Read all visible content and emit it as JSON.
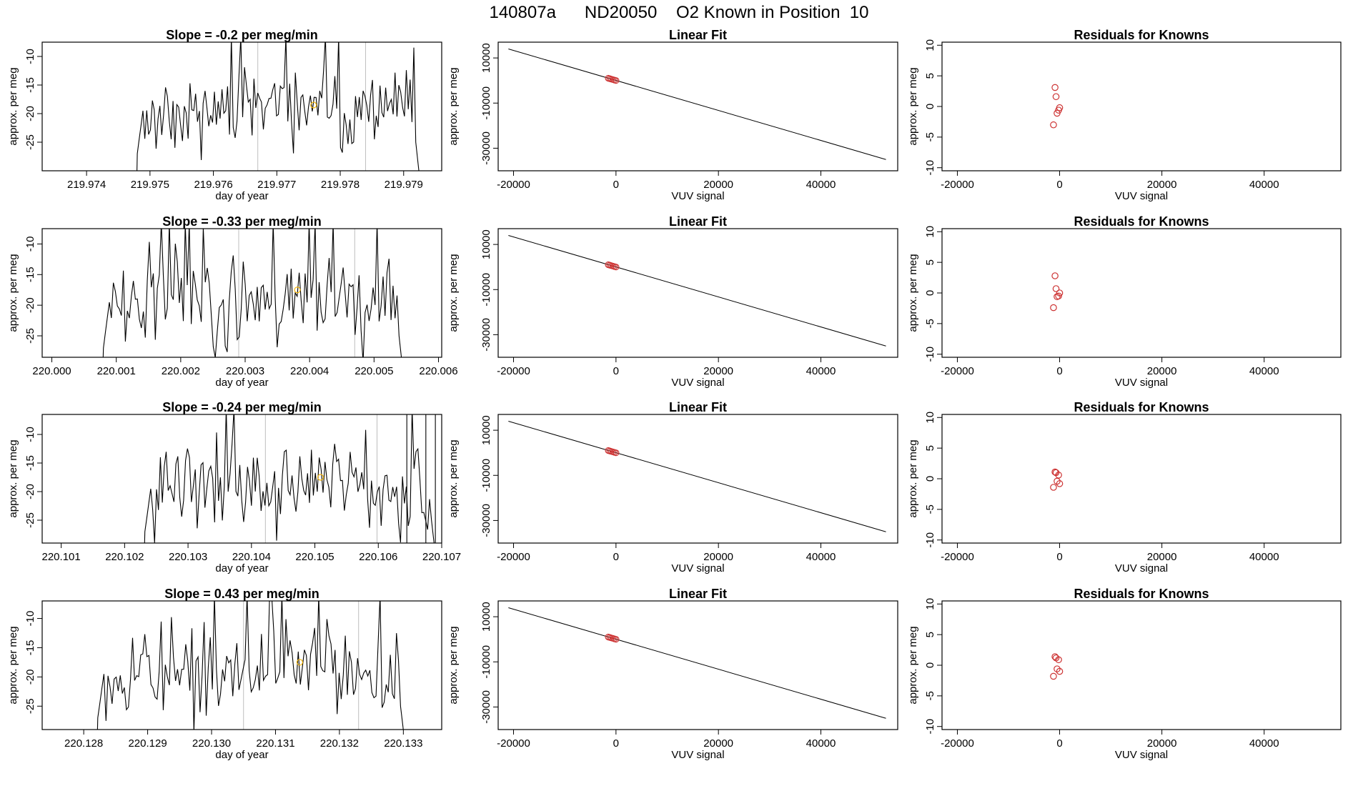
{
  "title": "140807a      ND20050    O2 Known in Position  10",
  "colors": {
    "line": "#000000",
    "gridline": "#bebebe",
    "known_points": "#cd3333",
    "marker": "#f6b60a"
  },
  "chart_data": [
    {
      "type": "line",
      "panel": "time-series",
      "row": 1,
      "title": "Slope =  -0.2  per meg/min",
      "xlabel": "day of year",
      "ylabel": "approx. per meg",
      "xlim": [
        219.9733,
        219.9796
      ],
      "ylim": [
        -30,
        -7.5
      ],
      "xticks": [
        "219.974",
        "219.975",
        "219.976",
        "219.977",
        "219.978",
        "219.979"
      ],
      "xtick_values": [
        219.974,
        219.975,
        219.976,
        219.977,
        219.978,
        219.979
      ],
      "yticks": [
        "-10",
        "-15",
        "-20",
        "-25"
      ],
      "ytick_values": [
        -10,
        -15,
        -20,
        -25
      ],
      "x_start": 219.9748,
      "x_end": 219.97925,
      "vlines": [
        219.9767,
        219.9784
      ],
      "marker": {
        "x": 219.97758,
        "y": -18.5
      },
      "seed": 11
    },
    {
      "type": "line",
      "panel": "time-series",
      "row": 2,
      "title": "Slope =  -0.33  per meg/min",
      "xlabel": "day of year",
      "ylabel": "approx. per meg",
      "xlim": [
        219.99985,
        220.00605
      ],
      "ylim": [
        -28.5,
        -7.5
      ],
      "xticks": [
        "220.000",
        "220.001",
        "220.002",
        "220.003",
        "220.004",
        "220.005",
        "220.006"
      ],
      "xtick_values": [
        220.0,
        220.001,
        220.002,
        220.003,
        220.004,
        220.005,
        220.006
      ],
      "yticks": [
        "-10",
        "-15",
        "-20",
        "-25"
      ],
      "ytick_values": [
        -10,
        -15,
        -20,
        -25
      ],
      "x_start": 220.0008,
      "x_end": 220.00545,
      "vlines": [
        220.0029,
        220.0047
      ],
      "marker": {
        "x": 220.00381,
        "y": -17.5
      },
      "seed": 23
    },
    {
      "type": "line",
      "panel": "time-series",
      "row": 3,
      "title": "Slope =  -0.24  per meg/min",
      "xlabel": "day of year",
      "ylabel": "approx. per meg",
      "xlim": [
        220.1007,
        220.107
      ],
      "ylim": [
        -29,
        -6.5
      ],
      "xticks": [
        "220.101",
        "220.102",
        "220.103",
        "220.104",
        "220.105",
        "220.106",
        "220.107"
      ],
      "xtick_values": [
        220.101,
        220.102,
        220.103,
        220.104,
        220.105,
        220.106,
        220.107
      ],
      "yticks": [
        "-10",
        "-15",
        "-20",
        "-25"
      ],
      "ytick_values": [
        -10,
        -15,
        -20,
        -25
      ],
      "x_start": 220.10232,
      "x_end": 220.1069,
      "vlines": [
        220.10422,
        220.10598
      ],
      "marker": {
        "x": 220.10509,
        "y": -17.5
      },
      "seed": 37
    },
    {
      "type": "line",
      "panel": "time-series",
      "row": 4,
      "title": "Slope =  0.43  per meg/min",
      "xlabel": "day of year",
      "ylabel": "approx. per meg",
      "xlim": [
        220.12735,
        220.1336
      ],
      "ylim": [
        -29,
        -7
      ],
      "xticks": [
        "220.128",
        "220.129",
        "220.130",
        "220.131",
        "220.132",
        "220.133"
      ],
      "xtick_values": [
        220.128,
        220.129,
        220.13,
        220.131,
        220.132,
        220.133
      ],
      "yticks": [
        "-10",
        "-15",
        "-20",
        "-25"
      ],
      "ytick_values": [
        -10,
        -15,
        -20,
        -25
      ],
      "x_start": 220.12822,
      "x_end": 220.13302,
      "vlines": [
        220.1305,
        220.1323
      ],
      "marker": {
        "x": 220.13138,
        "y": -17.5
      },
      "seed": 53
    },
    {
      "type": "scatter",
      "panel": "linear-fit",
      "row": 1,
      "title": "Linear Fit",
      "xlabel": "VUV signal",
      "ylabel": "approx. per meg",
      "xlim": [
        -23000,
        55000
      ],
      "ylim": [
        -40000,
        17000
      ],
      "xticks": [
        "-20000",
        "0",
        "20000",
        "40000"
      ],
      "xtick_values": [
        -20000,
        0,
        20000,
        40000
      ],
      "yticks": [
        "10000",
        "-10000",
        "-30000"
      ],
      "ytick_values": [
        10000,
        -10000,
        -30000
      ],
      "fit_line": {
        "x": [
          -21000,
          52700
        ],
        "y": [
          14000,
          -35000
        ]
      },
      "points": {
        "x": [
          -1500,
          -1200,
          -900,
          -600,
          -300,
          0
        ],
        "y": [
          1000,
          800,
          600,
          400,
          200,
          0
        ]
      }
    },
    {
      "type": "scatter",
      "panel": "linear-fit",
      "row": 2,
      "title": "Linear Fit",
      "xlabel": "VUV signal",
      "ylabel": "approx. per meg",
      "xlim": [
        -23000,
        55000
      ],
      "ylim": [
        -40000,
        17000
      ],
      "xticks": [
        "-20000",
        "0",
        "20000",
        "40000"
      ],
      "xtick_values": [
        -20000,
        0,
        20000,
        40000
      ],
      "yticks": [
        "10000",
        "-10000",
        "-30000"
      ],
      "ytick_values": [
        10000,
        -10000,
        -30000
      ],
      "fit_line": {
        "x": [
          -21000,
          52700
        ],
        "y": [
          14000,
          -35000
        ]
      },
      "points": {
        "x": [
          -1500,
          -1200,
          -900,
          -600,
          -300,
          0
        ],
        "y": [
          1000,
          800,
          600,
          400,
          200,
          0
        ]
      }
    },
    {
      "type": "scatter",
      "panel": "linear-fit",
      "row": 3,
      "title": "Linear Fit",
      "xlabel": "VUV signal",
      "ylabel": "approx. per meg",
      "xlim": [
        -23000,
        55000
      ],
      "ylim": [
        -40000,
        17000
      ],
      "xticks": [
        "-20000",
        "0",
        "20000",
        "40000"
      ],
      "xtick_values": [
        -20000,
        0,
        20000,
        40000
      ],
      "yticks": [
        "10000",
        "-10000",
        "-30000"
      ],
      "ytick_values": [
        10000,
        -10000,
        -30000
      ],
      "fit_line": {
        "x": [
          -21000,
          52700
        ],
        "y": [
          14000,
          -35000
        ]
      },
      "points": {
        "x": [
          -1500,
          -1200,
          -900,
          -600,
          -300,
          0
        ],
        "y": [
          1000,
          800,
          600,
          400,
          200,
          0
        ]
      }
    },
    {
      "type": "scatter",
      "panel": "linear-fit",
      "row": 4,
      "title": "Linear Fit",
      "xlabel": "VUV signal",
      "ylabel": "approx. per meg",
      "xlim": [
        -23000,
        55000
      ],
      "ylim": [
        -40000,
        17000
      ],
      "xticks": [
        "-20000",
        "0",
        "20000",
        "40000"
      ],
      "xtick_values": [
        -20000,
        0,
        20000,
        40000
      ],
      "yticks": [
        "10000",
        "-10000",
        "-30000"
      ],
      "ytick_values": [
        10000,
        -10000,
        -30000
      ],
      "fit_line": {
        "x": [
          -21000,
          52700
        ],
        "y": [
          14000,
          -35000
        ]
      },
      "points": {
        "x": [
          -1500,
          -1200,
          -900,
          -600,
          -300,
          0
        ],
        "y": [
          1000,
          800,
          600,
          400,
          200,
          0
        ]
      }
    },
    {
      "type": "scatter",
      "panel": "residuals",
      "row": 1,
      "title": "Residuals for Knowns",
      "xlabel": "VUV signal",
      "ylabel": "approx. per meg",
      "xlim": [
        -23000,
        55000
      ],
      "ylim": [
        -10.5,
        10.5
      ],
      "xticks": [
        "-20000",
        "0",
        "20000",
        "40000"
      ],
      "xtick_values": [
        -20000,
        0,
        20000,
        40000
      ],
      "yticks": [
        "10",
        "5",
        "0",
        "-5",
        "-10"
      ],
      "ytick_values": [
        10,
        5,
        0,
        -5,
        -10
      ],
      "points": {
        "x": [
          -900,
          -700,
          -500,
          -200,
          0,
          -1200
        ],
        "y": [
          3.1,
          1.6,
          -1.1,
          -0.6,
          -0.2,
          -3.0
        ]
      }
    },
    {
      "type": "scatter",
      "panel": "residuals",
      "row": 2,
      "title": "Residuals for Knowns",
      "xlabel": "VUV signal",
      "ylabel": "approx. per meg",
      "xlim": [
        -23000,
        55000
      ],
      "ylim": [
        -10.5,
        10.5
      ],
      "xticks": [
        "-20000",
        "0",
        "20000",
        "40000"
      ],
      "xtick_values": [
        -20000,
        0,
        20000,
        40000
      ],
      "yticks": [
        "10",
        "5",
        "0",
        "-5",
        "-10"
      ],
      "ytick_values": [
        10,
        5,
        0,
        -5,
        -10
      ],
      "points": {
        "x": [
          -900,
          -700,
          -500,
          -200,
          0,
          -1200
        ],
        "y": [
          2.8,
          0.7,
          -0.6,
          -0.5,
          0.0,
          -2.4
        ]
      }
    },
    {
      "type": "scatter",
      "panel": "residuals",
      "row": 3,
      "title": "Residuals for Knowns",
      "xlabel": "VUV signal",
      "ylabel": "approx. per meg",
      "xlim": [
        -23000,
        55000
      ],
      "ylim": [
        -10.5,
        10.5
      ],
      "xticks": [
        "-20000",
        "0",
        "20000",
        "40000"
      ],
      "xtick_values": [
        -20000,
        0,
        20000,
        40000
      ],
      "yticks": [
        "10",
        "5",
        "0",
        "-5",
        "-10"
      ],
      "ytick_values": [
        10,
        5,
        0,
        -5,
        -10
      ],
      "points": {
        "x": [
          -900,
          -700,
          -500,
          -200,
          0,
          -1200
        ],
        "y": [
          1.1,
          1.0,
          -0.4,
          0.6,
          -0.8,
          -1.4
        ]
      }
    },
    {
      "type": "scatter",
      "panel": "residuals",
      "row": 4,
      "title": "Residuals for Knowns",
      "xlabel": "VUV signal",
      "ylabel": "approx. per meg",
      "xlim": [
        -23000,
        55000
      ],
      "ylim": [
        -10.5,
        10.5
      ],
      "xticks": [
        "-20000",
        "0",
        "20000",
        "40000"
      ],
      "xtick_values": [
        -20000,
        0,
        20000,
        40000
      ],
      "yticks": [
        "10",
        "5",
        "0",
        "-5",
        "-10"
      ],
      "ytick_values": [
        10,
        5,
        0,
        -5,
        -10
      ],
      "points": {
        "x": [
          -900,
          -700,
          -500,
          -200,
          0,
          -1200
        ],
        "y": [
          1.4,
          1.2,
          -0.6,
          0.9,
          -1.0,
          -1.8
        ]
      }
    }
  ]
}
